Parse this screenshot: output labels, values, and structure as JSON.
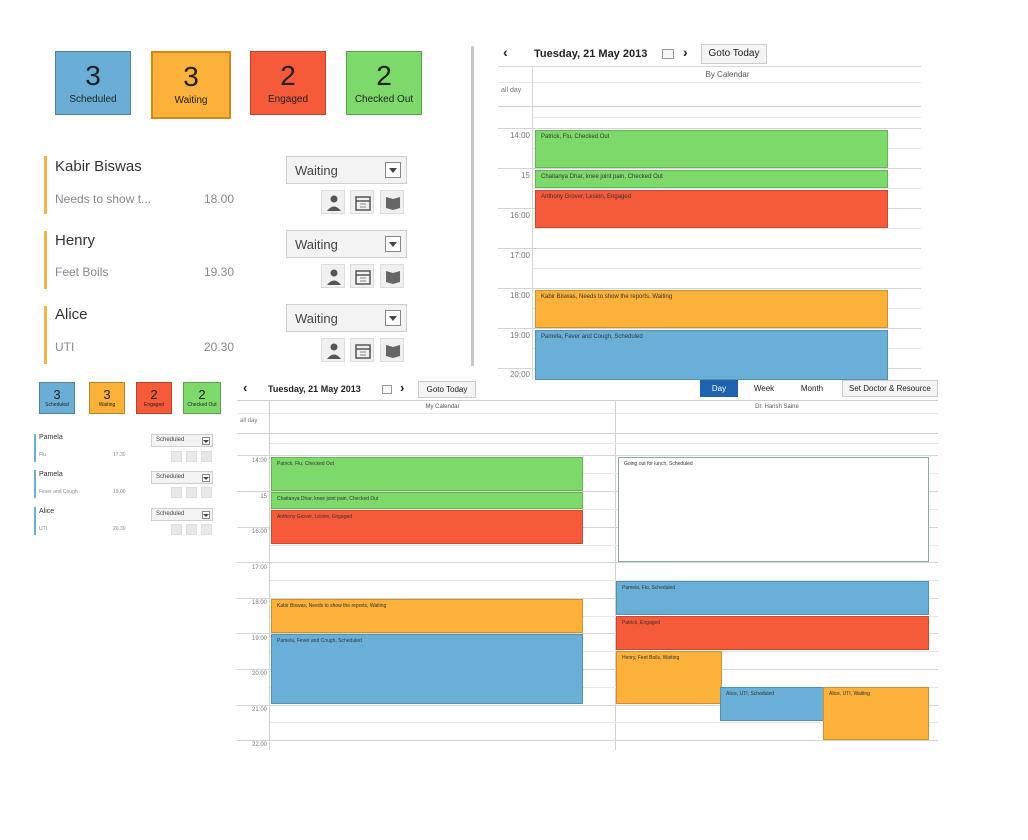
{
  "top_left": {
    "cards": [
      {
        "count": "3",
        "label": "Scheduled",
        "color": "#6aaed6"
      },
      {
        "count": "3",
        "label": "Waiting",
        "color": "#fbb13a"
      },
      {
        "count": "2",
        "label": "Engaged",
        "color": "#f55a3a"
      },
      {
        "count": "2",
        "label": "Checked Out",
        "color": "#7dd96a"
      }
    ],
    "patients": [
      {
        "name": "Kabir Biswas",
        "note": "Needs to show t...",
        "time": "18.00",
        "status": "Waiting"
      },
      {
        "name": "Henry",
        "note": "Feet Boils",
        "time": "19.30",
        "status": "Waiting"
      },
      {
        "name": "Alice",
        "note": "UTI",
        "time": "20.30",
        "status": "Waiting"
      }
    ]
  },
  "top_calendar": {
    "date_title": "Tuesday, 21 May 2013",
    "goto_today": "Goto Today",
    "column": "By Calendar",
    "all_day": "all day",
    "times": [
      "14:00",
      "15",
      "16:00",
      "17:00",
      "18:00",
      "19:00",
      "20:00"
    ],
    "events": [
      {
        "text": "Patrick, Flu, Checked Out",
        "status": "green"
      },
      {
        "text": "Chaitanya Dhar, knee joint pain, Checked Out",
        "status": "green"
      },
      {
        "text": "Anthony Grover, Lesion, Engaged",
        "status": "red"
      },
      {
        "text": "Kabir Biswas, Needs to show the reports, Waiting",
        "status": "orange"
      },
      {
        "text": "Pamela, Fever and Cough, Scheduled",
        "status": "blue"
      }
    ]
  },
  "bottom_left": {
    "cards": [
      {
        "count": "3",
        "label": "Scheduled",
        "color": "#6aaed6"
      },
      {
        "count": "3",
        "label": "Waiting",
        "color": "#fbb13a"
      },
      {
        "count": "2",
        "label": "Engaged",
        "color": "#f55a3a"
      },
      {
        "count": "2",
        "label": "Checked Out",
        "color": "#7dd96a"
      }
    ],
    "patients": [
      {
        "name": "Pamela",
        "note": "Flu",
        "time": "17.30",
        "status": "Scheduled"
      },
      {
        "name": "Pamela",
        "note": "Fever and Cough",
        "time": "19.00",
        "status": "Scheduled"
      },
      {
        "name": "Alice",
        "note": "UTI",
        "time": "20.30",
        "status": "Scheduled"
      }
    ]
  },
  "bottom_calendar": {
    "date_title": "Tuesday, 21 May 2013",
    "goto_today": "Goto Today",
    "view_tabs": [
      "Day",
      "Week",
      "Month"
    ],
    "set_doctor": "Set Doctor & Resource",
    "columns": [
      "My Calendar",
      "Dr. Harish Saine"
    ],
    "all_day": "all day",
    "times": [
      "14:00",
      "15",
      "16:00",
      "17:00",
      "18:00",
      "19:00",
      "20:00",
      "21:00",
      "22:00"
    ],
    "events_col1": [
      {
        "text": "Patrick, Flu, Checked Out",
        "status": "green"
      },
      {
        "text": "Chaitanya Dhar, knee joint pain, Checked Out",
        "status": "green"
      },
      {
        "text": "Anthony Grover, Lesion, Engaged",
        "status": "red"
      },
      {
        "text": "Kabir Biswas, Needs to show the reports, Waiting",
        "status": "orange"
      },
      {
        "text": "Pamela, Fever and Cough, Scheduled",
        "status": "blue"
      }
    ],
    "events_col2": [
      {
        "text": "Going out for lunch, Scheduled",
        "status": "white"
      },
      {
        "text": "Pamela, Flu, Scheduled",
        "status": "blue"
      },
      {
        "text": "Patrick, Engaged",
        "status": "red"
      },
      {
        "text": "Henry, Feet Boils, Waiting",
        "status": "orange"
      },
      {
        "text": "Alice, UTI, Scheduled",
        "status": "blue"
      },
      {
        "text": "Alice, UTI, Waiting",
        "status": "orange"
      }
    ]
  }
}
